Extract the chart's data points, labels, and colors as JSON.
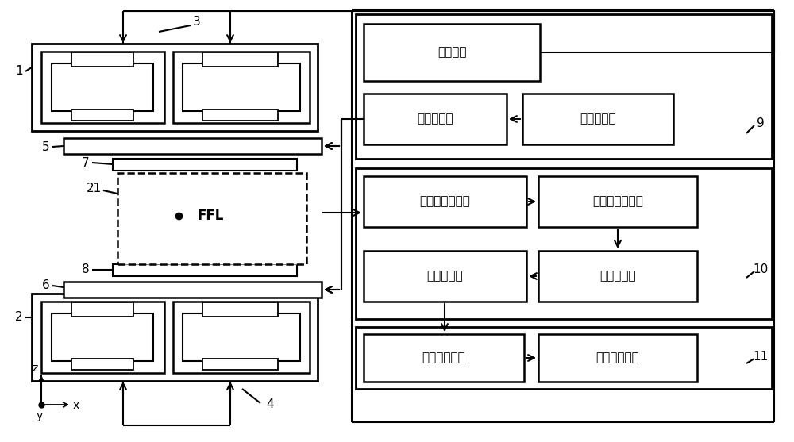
{
  "fig_width": 10.0,
  "fig_height": 5.57,
  "bg_color": "#ffffff",
  "labels": {
    "dc_power": "直流电源",
    "power_amp": "功率放大器",
    "signal_gen": "信号发生器",
    "mux": "模拟多路复用器",
    "notch": "基频陷波滤波器",
    "data_acq": "数据采集卡",
    "op_amp": "运算放大器",
    "data_proc": "数据处理模块",
    "img_disp": "图像显示模块",
    "ffl": "FFL"
  },
  "numbers": {
    "n1": "1",
    "n2": "2",
    "n3": "3",
    "n4": "4",
    "n5": "5",
    "n6": "6",
    "n7": "7",
    "n8": "8",
    "n9": "9",
    "n10": "10",
    "n11": "11",
    "n21": "21"
  }
}
